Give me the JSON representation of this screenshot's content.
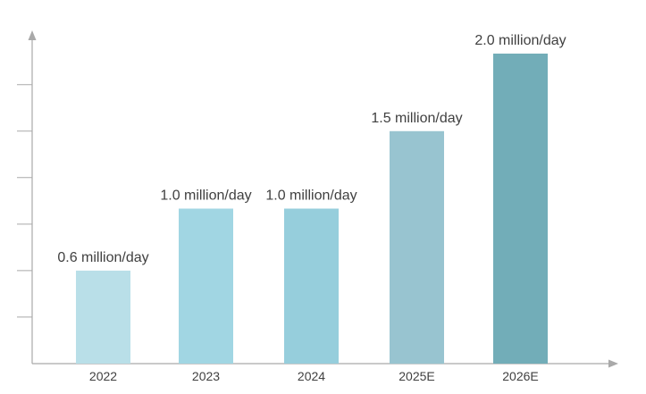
{
  "chart_data": {
    "type": "bar",
    "categories": [
      "2022",
      "2023",
      "2024",
      "2025E",
      "2026E"
    ],
    "values": [
      0.6,
      1.0,
      1.0,
      1.5,
      2.0
    ],
    "data_labels": [
      "0.6 million/day",
      "1.0 million/day",
      "1.0 million/day",
      "1.5 million/day",
      "2.0 million/day"
    ],
    "bar_colors": [
      "#b9dfe8",
      "#a1d6e3",
      "#96cedc",
      "#98c4d0",
      "#72adb8"
    ],
    "axis_color": "#a9a9a9",
    "label_color": "#404040",
    "y_axis_tick_labels_shown": false,
    "grid": false,
    "legend": "none"
  }
}
